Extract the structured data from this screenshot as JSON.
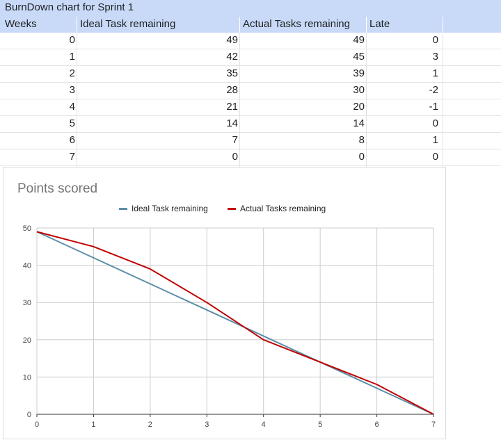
{
  "sheet": {
    "title": "BurnDown chart for Sprint 1",
    "headers": [
      "Weeks",
      "Ideal Task remaining",
      "Actual Tasks remaining",
      "Late"
    ],
    "rows": [
      [
        "0",
        "49",
        "49",
        "0"
      ],
      [
        "1",
        "42",
        "45",
        "3"
      ],
      [
        "2",
        "35",
        "39",
        "1"
      ],
      [
        "3",
        "28",
        "30",
        "-2"
      ],
      [
        "4",
        "21",
        "20",
        "-1"
      ],
      [
        "5",
        "14",
        "14",
        "0"
      ],
      [
        "6",
        "7",
        "8",
        "1"
      ],
      [
        "7",
        "0",
        "0",
        "0"
      ]
    ]
  },
  "colors": {
    "header_bg": "#c9daf8",
    "ideal": "#5b8fa8",
    "actual": "#c00000",
    "grid": "#cccccc"
  },
  "chart_data": {
    "type": "line",
    "title": "Points scored",
    "x": [
      0,
      1,
      2,
      3,
      4,
      5,
      6,
      7
    ],
    "series": [
      {
        "name": "Ideal Task remaining",
        "values": [
          49,
          42,
          35,
          28,
          21,
          14,
          7,
          0
        ]
      },
      {
        "name": "Actual Tasks remaining",
        "values": [
          49,
          45,
          39,
          30,
          20,
          14,
          8,
          0
        ]
      }
    ],
    "xlim": [
      0,
      7
    ],
    "ylim": [
      0,
      50
    ],
    "yticks": [
      0,
      10,
      20,
      30,
      40,
      50
    ],
    "xticks": [
      0,
      1,
      2,
      3,
      4,
      5,
      6,
      7
    ],
    "legend_position": "top",
    "grid": true
  }
}
